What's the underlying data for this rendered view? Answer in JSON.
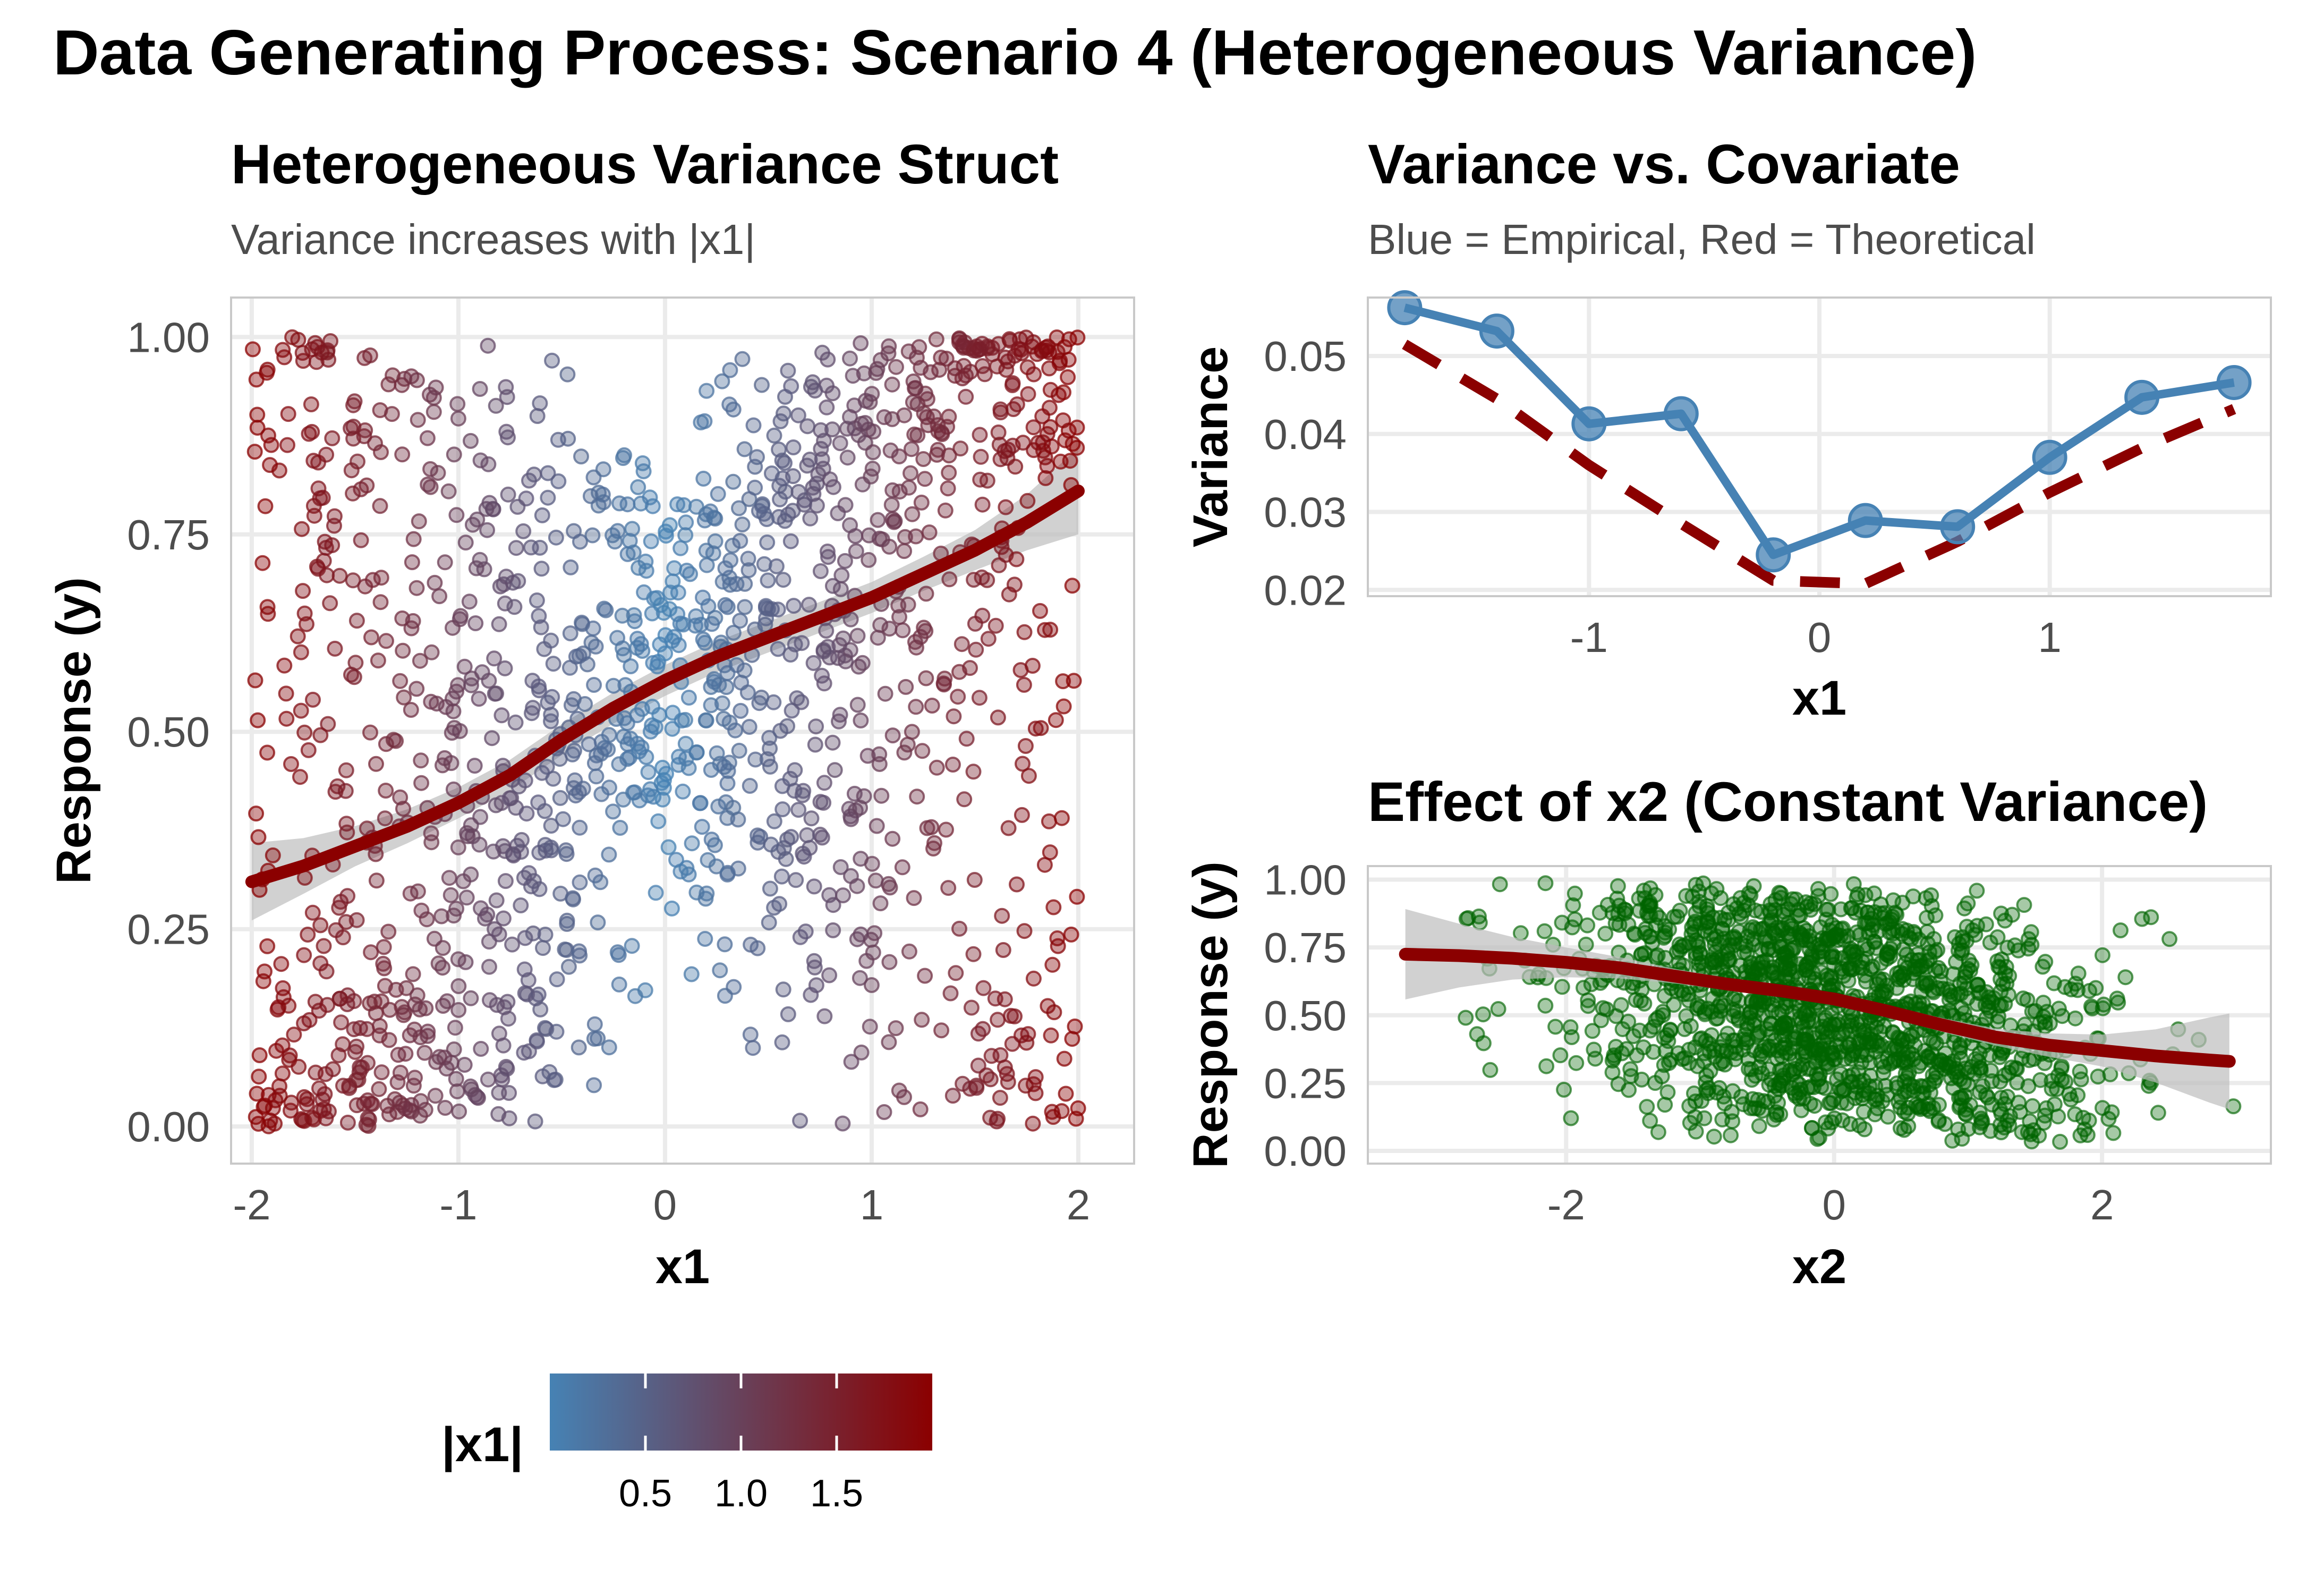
{
  "figure": {
    "title": "Data Generating Process: Scenario 4 (Heterogeneous Variance)"
  },
  "colors": {
    "low_abs_x1": "#4682B4",
    "high_abs_x1": "#8B0000",
    "smooth_line": "#8B0000",
    "confidence_band": "#bdbdbd",
    "empirical": "#4682B4",
    "theoretical": "#8B0000",
    "x2_points": "#006400"
  },
  "chart_data": [
    {
      "type": "scatter",
      "title": "Heterogeneous Variance Struct",
      "subtitle": "Variance increases with |x1|",
      "xlabel": "x1",
      "ylabel": "Response (y)",
      "xlim": [
        -2.1,
        2.27
      ],
      "ylim": [
        -0.047,
        1.05
      ],
      "xticks": [
        "-2",
        "-1",
        "0",
        "1",
        "2"
      ],
      "yticks": [
        "0.00",
        "0.25",
        "0.50",
        "0.75",
        "1.00"
      ],
      "grid": true,
      "n_points": 1500,
      "color_by": "|x1|",
      "legend": {
        "title": "|x1|",
        "position": "bottom",
        "type": "colorbar",
        "range": [
          0,
          2
        ],
        "ticks": [
          "0.5",
          "1.0",
          "1.5"
        ]
      },
      "smooth": {
        "x": [
          -2.0,
          -1.75,
          -1.5,
          -1.25,
          -1.0,
          -0.75,
          -0.5,
          -0.25,
          0.0,
          0.25,
          0.5,
          0.75,
          1.0,
          1.25,
          1.5,
          1.75,
          2.0
        ],
        "y": [
          0.31,
          0.33,
          0.355,
          0.38,
          0.41,
          0.445,
          0.49,
          0.53,
          0.565,
          0.595,
          0.62,
          0.645,
          0.67,
          0.7,
          0.73,
          0.765,
          0.805
        ],
        "se": [
          0.025,
          0.018,
          0.013,
          0.011,
          0.01,
          0.01,
          0.01,
          0.01,
          0.01,
          0.01,
          0.01,
          0.01,
          0.01,
          0.011,
          0.013,
          0.018,
          0.028
        ]
      }
    },
    {
      "type": "line",
      "title": "Variance vs. Covariate",
      "subtitle": "Blue = Empirical, Red = Theoretical",
      "xlabel": "x1",
      "ylabel": "Variance",
      "xlim": [
        -1.96,
        1.96
      ],
      "ylim": [
        0.0192,
        0.0575
      ],
      "xticks": [
        "-1",
        "0",
        "1"
      ],
      "yticks": [
        "0.02",
        "0.03",
        "0.04",
        "0.05"
      ],
      "grid": true,
      "series": [
        {
          "name": "Empirical",
          "style": "solid with points",
          "x": [
            -1.8,
            -1.4,
            -1.0,
            -0.6,
            -0.2,
            0.2,
            0.6,
            1.0,
            1.4,
            1.8
          ],
          "y": [
            0.0562,
            0.0532,
            0.0413,
            0.0426,
            0.0245,
            0.0289,
            0.0281,
            0.037,
            0.0447,
            0.0466
          ]
        },
        {
          "name": "Theoretical",
          "style": "dashed",
          "x": [
            -1.8,
            -1.4,
            -1.0,
            -0.6,
            -0.2,
            0.2,
            0.6,
            1.0,
            1.4,
            1.8
          ],
          "y": [
            0.0515,
            0.0445,
            0.036,
            0.0285,
            0.0212,
            0.0208,
            0.0262,
            0.0325,
            0.0382,
            0.0432
          ]
        }
      ]
    },
    {
      "type": "scatter",
      "title": "Effect of x2 (Constant Variance)",
      "xlabel": "x2",
      "ylabel": "Response (y)",
      "xlim": [
        -3.48,
        3.26
      ],
      "ylim": [
        -0.047,
        1.05
      ],
      "xticks": [
        "-2",
        "0",
        "2"
      ],
      "yticks": [
        "0.00",
        "0.25",
        "0.50",
        "0.75",
        "1.00"
      ],
      "grid": true,
      "n_points": 1500,
      "smooth": {
        "x": [
          -3.2,
          -2.8,
          -2.4,
          -2.0,
          -1.6,
          -1.2,
          -0.8,
          -0.4,
          0.0,
          0.4,
          0.8,
          1.2,
          1.6,
          2.0,
          2.4,
          2.8,
          2.95
        ],
        "y": [
          0.725,
          0.72,
          0.71,
          0.695,
          0.675,
          0.645,
          0.615,
          0.59,
          0.56,
          0.515,
          0.465,
          0.42,
          0.39,
          0.37,
          0.35,
          0.335,
          0.33
        ],
        "se": [
          0.085,
          0.06,
          0.04,
          0.028,
          0.02,
          0.014,
          0.011,
          0.01,
          0.01,
          0.011,
          0.013,
          0.016,
          0.022,
          0.03,
          0.05,
          0.08,
          0.09
        ]
      }
    }
  ]
}
